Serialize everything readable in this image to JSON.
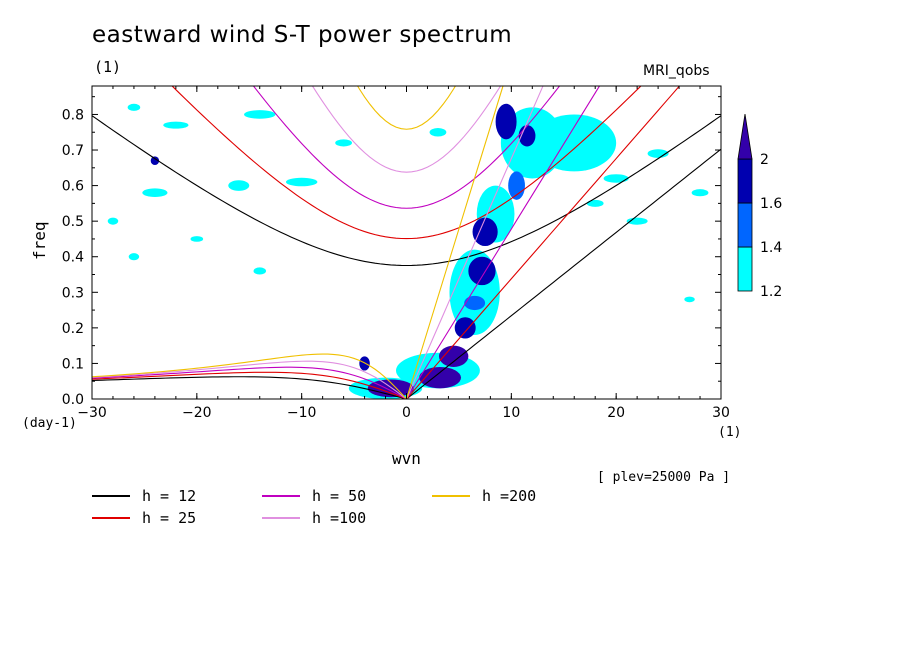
{
  "title": "eastward wind S-T power spectrum",
  "subtitle": "(1)",
  "model_label": "MRI_qobs",
  "level_note": "[ plev=25000 Pa ]",
  "colors": {
    "h12": "#000000",
    "h25": "#e00000",
    "h50": "#c000c0",
    "h100": "#e090e0",
    "h200": "#f0c000",
    "shade_low": "#00ffff",
    "shade_mid": "#0066ff",
    "shade_high": "#0000b0",
    "shade_top": "#3300aa"
  },
  "chart_data": {
    "type": "heatmap",
    "xlabel": "wvn",
    "ylabel": "freq",
    "x_unit": "(1)",
    "y_unit": "(day-1)",
    "xlim": [
      -30,
      30
    ],
    "ylim": [
      0,
      0.88
    ],
    "x_ticks": [
      -30,
      -20,
      -10,
      0,
      10,
      20,
      30
    ],
    "x_tick_labels": [
      "-30",
      "-20",
      "-10",
      "0",
      "10",
      "20",
      "30"
    ],
    "y_ticks": [
      0,
      0.1,
      0.2,
      0.3,
      0.4,
      0.5,
      0.6,
      0.7,
      0.8
    ],
    "y_tick_labels": [
      "0.0",
      "0.1",
      "0.2",
      "0.3",
      "0.4",
      "0.5",
      "0.6",
      "0.7",
      "0.8"
    ],
    "colorbar": {
      "levels": [
        1.2,
        1.4,
        1.6,
        2
      ],
      "labels": [
        "1.2",
        "1.4",
        "1.6",
        "2"
      ],
      "colors": [
        "#00ffff",
        "#0066ff",
        "#0000b0",
        "#3300aa"
      ]
    },
    "dispersion_curves": [
      {
        "label": "h = 12",
        "h": 12,
        "color": "#000000"
      },
      {
        "label": "h = 25",
        "h": 25,
        "color": "#e00000"
      },
      {
        "label": "h = 50",
        "h": 50,
        "color": "#c000c0"
      },
      {
        "label": "h =100",
        "h": 100,
        "color": "#e090e0"
      },
      {
        "label": "h =200",
        "h": 200,
        "color": "#f0c000"
      }
    ],
    "shaded_regions": [
      {
        "x": 7.5,
        "y": 0.47,
        "rx": 1.2,
        "ry": 0.04,
        "level": 1.6
      },
      {
        "x": 7.2,
        "y": 0.36,
        "rx": 1.3,
        "ry": 0.04,
        "level": 1.6
      },
      {
        "x": 6.5,
        "y": 0.27,
        "rx": 1.0,
        "ry": 0.02,
        "level": 1.4
      },
      {
        "x": 5.6,
        "y": 0.2,
        "rx": 1.0,
        "ry": 0.03,
        "level": 1.6
      },
      {
        "x": 4.5,
        "y": 0.12,
        "rx": 1.4,
        "ry": 0.03,
        "level": 2
      },
      {
        "x": 3.2,
        "y": 0.06,
        "rx": 2.0,
        "ry": 0.03,
        "level": 2
      },
      {
        "x": -1.5,
        "y": 0.03,
        "rx": 2.2,
        "ry": 0.025,
        "level": 2
      },
      {
        "x": -4.0,
        "y": 0.1,
        "rx": 0.5,
        "ry": 0.02,
        "level": 1.6
      },
      {
        "x": 9.5,
        "y": 0.78,
        "rx": 1.0,
        "ry": 0.05,
        "level": 1.6
      },
      {
        "x": 11.5,
        "y": 0.74,
        "rx": 0.8,
        "ry": 0.03,
        "level": 1.6
      },
      {
        "x": 10.5,
        "y": 0.6,
        "rx": 0.8,
        "ry": 0.04,
        "level": 1.4
      },
      {
        "x": 8.5,
        "y": 0.52,
        "rx": 1.8,
        "ry": 0.08,
        "level": 1.2
      },
      {
        "x": 6.5,
        "y": 0.3,
        "rx": 2.4,
        "ry": 0.12,
        "level": 1.2
      },
      {
        "x": 3.0,
        "y": 0.08,
        "rx": 4.0,
        "ry": 0.05,
        "level": 1.2
      },
      {
        "x": -2.0,
        "y": 0.03,
        "rx": 3.5,
        "ry": 0.03,
        "level": 1.2
      },
      {
        "x": 12.0,
        "y": 0.72,
        "rx": 3.0,
        "ry": 0.1,
        "level": 1.2
      },
      {
        "x": 16.0,
        "y": 0.72,
        "rx": 4.0,
        "ry": 0.08,
        "level": 1.2
      },
      {
        "x": -24,
        "y": 0.58,
        "rx": 1.2,
        "ry": 0.012,
        "level": 1.2
      },
      {
        "x": -16,
        "y": 0.6,
        "rx": 1.0,
        "ry": 0.015,
        "level": 1.2
      },
      {
        "x": -10,
        "y": 0.61,
        "rx": 1.5,
        "ry": 0.012,
        "level": 1.2
      },
      {
        "x": -22,
        "y": 0.77,
        "rx": 1.2,
        "ry": 0.01,
        "level": 1.2
      },
      {
        "x": -14,
        "y": 0.8,
        "rx": 1.5,
        "ry": 0.012,
        "level": 1.2
      },
      {
        "x": -24,
        "y": 0.67,
        "rx": 0.4,
        "ry": 0.012,
        "level": 1.6
      },
      {
        "x": -26,
        "y": 0.82,
        "rx": 0.6,
        "ry": 0.01,
        "level": 1.2
      },
      {
        "x": 20,
        "y": 0.62,
        "rx": 1.2,
        "ry": 0.012,
        "level": 1.2
      },
      {
        "x": 24,
        "y": 0.69,
        "rx": 1.0,
        "ry": 0.012,
        "level": 1.2
      },
      {
        "x": 22,
        "y": 0.5,
        "rx": 1.0,
        "ry": 0.01,
        "level": 1.2
      },
      {
        "x": 18,
        "y": 0.55,
        "rx": 0.8,
        "ry": 0.01,
        "level": 1.2
      },
      {
        "x": -14,
        "y": 0.36,
        "rx": 0.6,
        "ry": 0.01,
        "level": 1.2
      },
      {
        "x": -28,
        "y": 0.5,
        "rx": 0.5,
        "ry": 0.01,
        "level": 1.2
      },
      {
        "x": -20,
        "y": 0.45,
        "rx": 0.6,
        "ry": 0.008,
        "level": 1.2
      },
      {
        "x": 3,
        "y": 0.75,
        "rx": 0.8,
        "ry": 0.012,
        "level": 1.2
      },
      {
        "x": -6,
        "y": 0.72,
        "rx": 0.8,
        "ry": 0.01,
        "level": 1.2
      },
      {
        "x": 28,
        "y": 0.58,
        "rx": 0.8,
        "ry": 0.01,
        "level": 1.2
      },
      {
        "x": -26,
        "y": 0.4,
        "rx": 0.5,
        "ry": 0.01,
        "level": 1.2
      },
      {
        "x": 27,
        "y": 0.28,
        "rx": 0.5,
        "ry": 0.008,
        "level": 1.2
      }
    ]
  }
}
